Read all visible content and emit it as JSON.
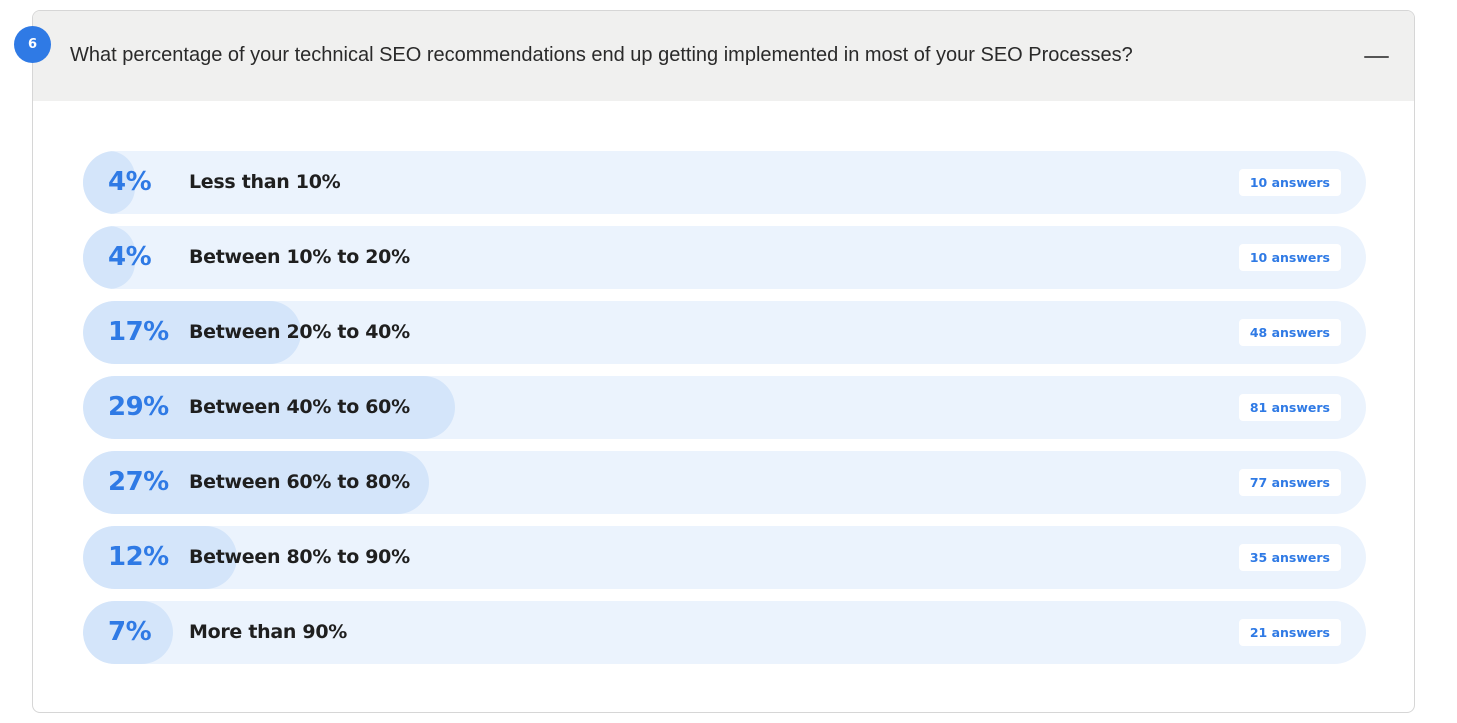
{
  "question": {
    "number": "6",
    "text": "What percentage of your technical SEO recommendations end up getting implemented in most of your SEO Processes?",
    "collapse_icon": "minus-icon"
  },
  "colors": {
    "accent": "#2f7ae5",
    "track": "#ebf3fd",
    "fill": "#d4e5fa",
    "header_bg": "#f0f0ef"
  },
  "options": [
    {
      "percent_label": "4%",
      "percent": 4,
      "label": "Less than 10%",
      "answers": "10 answers"
    },
    {
      "percent_label": "4%",
      "percent": 4,
      "label": "Between 10% to 20%",
      "answers": "10 answers"
    },
    {
      "percent_label": "17%",
      "percent": 17,
      "label": "Between 20% to 40%",
      "answers": "48 answers"
    },
    {
      "percent_label": "29%",
      "percent": 29,
      "label": "Between 40% to 60%",
      "answers": "81 answers"
    },
    {
      "percent_label": "27%",
      "percent": 27,
      "label": "Between 60% to 80%",
      "answers": "77 answers"
    },
    {
      "percent_label": "12%",
      "percent": 12,
      "label": "Between 80% to 90%",
      "answers": "35 answers"
    },
    {
      "percent_label": "7%",
      "percent": 7,
      "label": "More than 90%",
      "answers": "21 answers"
    }
  ]
}
